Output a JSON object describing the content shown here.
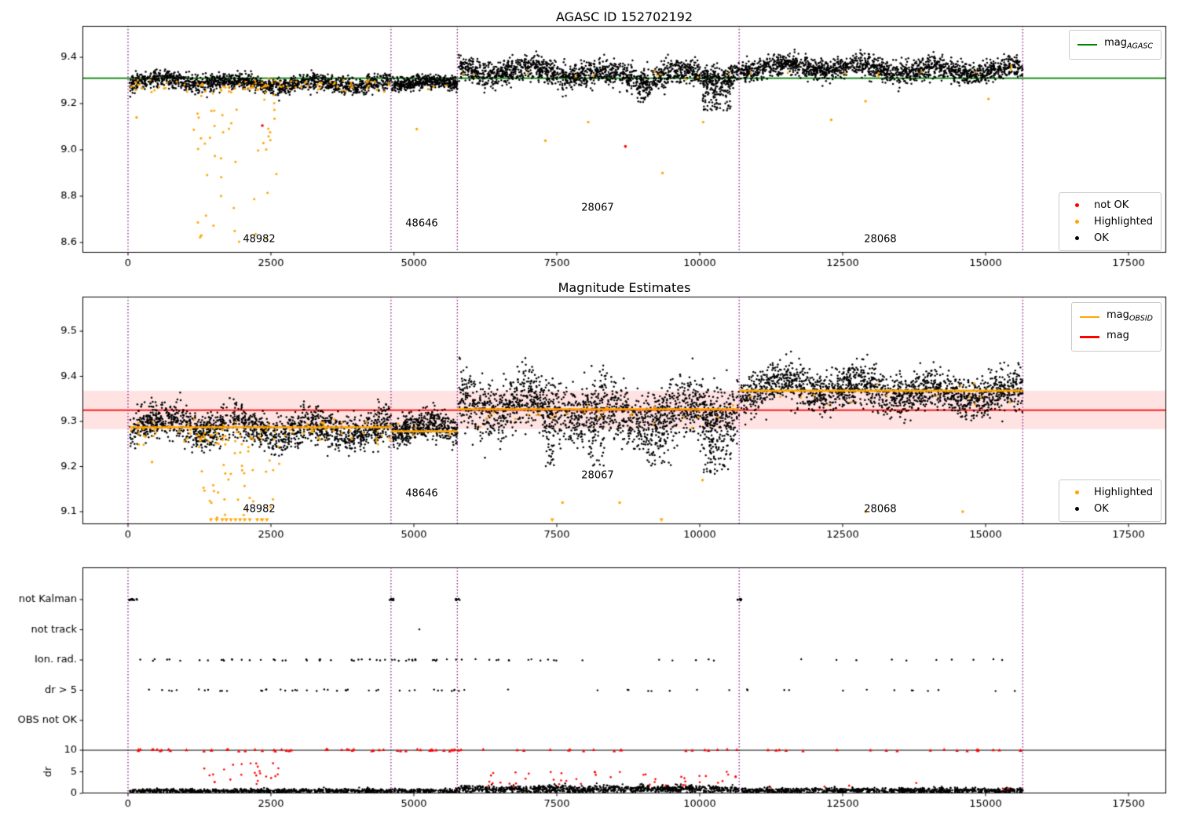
{
  "figure": {
    "background": "#ffffff"
  },
  "chart_data": [
    {
      "type": "scatter",
      "title": "AGASC ID 152702192",
      "xlim": [
        -800,
        18200
      ],
      "ylim": [
        8.55,
        9.54
      ],
      "xtick_values": [
        0,
        2500,
        5000,
        7500,
        10000,
        12500,
        15000,
        17500
      ],
      "xtick_labels": [
        "0",
        "2500",
        "5000",
        "7500",
        "10000",
        "12500",
        "15000",
        "17500"
      ],
      "yticks": [
        {
          "v": 8.6,
          "label": "8.6"
        },
        {
          "v": 8.8,
          "label": "8.8"
        },
        {
          "v": 9.0,
          "label": "9.0"
        },
        {
          "v": 9.2,
          "label": "9.2"
        },
        {
          "v": 9.4,
          "label": "9.4"
        }
      ],
      "vlines": {
        "color": "#800080",
        "x": [
          0,
          4600,
          5760,
          10690,
          15650
        ]
      },
      "ref_line": {
        "label_text": "mag",
        "label_sub": "AGASC",
        "value": 9.31,
        "color": "#008000"
      },
      "annotations": [
        {
          "text": "48982",
          "x": 2294,
          "y": 8.615
        },
        {
          "text": "48646",
          "x": 5137,
          "y": 8.68
        },
        {
          "text": "28067",
          "x": 8214,
          "y": 8.75
        },
        {
          "text": "28068",
          "x": 13159,
          "y": 8.615
        }
      ],
      "series": {
        "ok": {
          "color": "#000000",
          "segments": [
            {
              "x0": 30,
              "x1": 4600,
              "mean": 9.29,
              "sigma": 0.018,
              "wave": 0.013,
              "n": 1500
            },
            {
              "x0": 4620,
              "x1": 5760,
              "mean": 9.285,
              "sigma": 0.015,
              "wave": 0.01,
              "n": 450
            },
            {
              "x0": 5780,
              "x1": 10690,
              "mean": 9.33,
              "sigma": 0.027,
              "wave": 0.02,
              "n": 1700
            },
            {
              "x0": 10710,
              "x1": 15650,
              "mean": 9.35,
              "sigma": 0.023,
              "wave": 0.016,
              "n": 1700
            }
          ],
          "extra_clusters": [
            {
              "x0": 10050,
              "x1": 10550,
              "ymin": 9.17,
              "ymax": 9.3,
              "n": 100
            },
            {
              "x0": 8900,
              "x1": 9120,
              "ymin": 9.2,
              "ymax": 9.3,
              "n": 30
            }
          ]
        },
        "highlighted": {
          "color": "#FFA500",
          "sprinkle": {
            "n": 110,
            "seg1_bias": 0.6
          },
          "clusters": [
            {
              "x0": 1150,
              "x1": 2650,
              "ymin": 8.6,
              "ymax": 9.27,
              "n": 55
            }
          ],
          "points": [
            [
              150,
              9.14
            ],
            [
              1280,
              8.63
            ],
            [
              5050,
              9.09
            ],
            [
              7300,
              9.04
            ],
            [
              8050,
              9.12
            ],
            [
              9350,
              8.9
            ],
            [
              10060,
              9.12
            ],
            [
              12300,
              9.13
            ],
            [
              12900,
              9.21
            ],
            [
              15050,
              9.22
            ]
          ]
        },
        "not_ok": {
          "color": "#FF0000",
          "points": [
            [
              2350,
              9.105
            ],
            [
              8700,
              9.015
            ]
          ]
        }
      },
      "legend_points": [
        {
          "label": "not OK",
          "color": "#FF0000"
        },
        {
          "label": "Highlighted",
          "color": "#FFA500"
        },
        {
          "label": "OK",
          "color": "#000000"
        }
      ]
    },
    {
      "type": "scatter",
      "title": "Magnitude Estimates",
      "xlim": [
        -800,
        18200
      ],
      "ylim": [
        9.072,
        9.577
      ],
      "xtick_values": [
        0,
        2500,
        5000,
        7500,
        10000,
        12500,
        15000,
        17500
      ],
      "xtick_labels": [
        "0",
        "2500",
        "5000",
        "7500",
        "10000",
        "12500",
        "15000",
        "17500"
      ],
      "yticks": [
        {
          "v": 9.1,
          "label": "9.1"
        },
        {
          "v": 9.2,
          "label": "9.2"
        },
        {
          "v": 9.3,
          "label": "9.3"
        },
        {
          "v": 9.4,
          "label": "9.4"
        },
        {
          "v": 9.5,
          "label": "9.5"
        }
      ],
      "vlines": {
        "color": "#800080",
        "x": [
          0,
          4600,
          5760,
          10690,
          15650
        ]
      },
      "band": {
        "ymin": 9.283,
        "ymax": 9.368,
        "color": "rgba(255,40,40,0.13)"
      },
      "mag_line": {
        "label_text": "mag",
        "label_sub": "",
        "value": 9.325,
        "color": "#FF0000"
      },
      "step_line": {
        "label_text": "mag",
        "label_sub": "OBSID",
        "color": "#FFA500",
        "segments": [
          [
            30,
            4600,
            9.287
          ],
          [
            4600,
            5760,
            9.278
          ],
          [
            5760,
            10690,
            9.327
          ],
          [
            10690,
            15650,
            9.368
          ]
        ]
      },
      "annotations": [
        {
          "text": "48982",
          "x": 2294,
          "y": 9.105
        },
        {
          "text": "48646",
          "x": 5137,
          "y": 9.14
        },
        {
          "text": "28067",
          "x": 8214,
          "y": 9.18
        },
        {
          "text": "28068",
          "x": 13159,
          "y": 9.105
        }
      ],
      "series": {
        "ok": {
          "color": "#000000",
          "segments": [
            {
              "x0": 30,
              "x1": 4600,
              "mean": 9.287,
              "sigma": 0.02,
              "wave": 0.013,
              "n": 1500
            },
            {
              "x0": 4620,
              "x1": 5760,
              "mean": 9.28,
              "sigma": 0.016,
              "wave": 0.01,
              "n": 450
            },
            {
              "x0": 5780,
              "x1": 10690,
              "mean": 9.327,
              "sigma": 0.033,
              "wave": 0.02,
              "n": 1700
            },
            {
              "x0": 10710,
              "x1": 15650,
              "mean": 9.368,
              "sigma": 0.022,
              "wave": 0.014,
              "n": 1700
            }
          ],
          "extra_clusters": [
            {
              "x0": 7250,
              "x1": 7450,
              "ymin": 9.2,
              "ymax": 9.3,
              "n": 35
            },
            {
              "x0": 8050,
              "x1": 8350,
              "ymin": 9.2,
              "ymax": 9.3,
              "n": 45
            },
            {
              "x0": 9050,
              "x1": 9500,
              "ymin": 9.2,
              "ymax": 9.3,
              "n": 45
            },
            {
              "x0": 10050,
              "x1": 10550,
              "ymin": 9.18,
              "ymax": 9.3,
              "n": 90
            }
          ]
        },
        "highlighted": {
          "color": "#FFA500",
          "sprinkle": {
            "n": 130,
            "seg1_bias": 0.6
          },
          "clusters": [
            {
              "x0": 1150,
              "x1": 2650,
              "ymin": 9.082,
              "ymax": 9.27,
              "n": 60
            }
          ],
          "points": [
            [
              10050,
              9.17
            ],
            [
              12900,
              9.1
            ],
            [
              7600,
              9.12
            ],
            [
              8600,
              9.12
            ],
            [
              14600,
              9.1
            ],
            [
              420,
              9.21
            ]
          ],
          "triangles": {
            "y": 9.082,
            "xs": [
              1450,
              1550,
              1650,
              1720,
              1800,
              1880,
              1960,
              2040,
              2130,
              2260,
              2350,
              2430,
              7420,
              9330
            ]
          }
        }
      },
      "legend_points": [
        {
          "label": "Highlighted",
          "color": "#FFA500"
        },
        {
          "label": "OK",
          "color": "#000000"
        }
      ]
    },
    {
      "type": "scatter",
      "title": "",
      "ylabel": "dr",
      "xtick_values": [
        0,
        2500,
        5000,
        7500,
        10000,
        12500,
        15000,
        17500
      ],
      "xtick_labels": [
        "0",
        "2500",
        "5000",
        "7500",
        "10000",
        "12500",
        "15000",
        "17500"
      ],
      "flag_labels": [
        "not Kalman",
        "not track",
        "Ion. rad.",
        "dr > 5",
        "OBS not OK"
      ],
      "dr_ticks": [
        {
          "v": 10,
          "label": "10"
        },
        {
          "v": 5,
          "label": "5"
        },
        {
          "v": 0,
          "label": "0"
        }
      ],
      "vlines": {
        "color": "#800080",
        "x": [
          0,
          4600,
          5760,
          10690,
          15650
        ]
      },
      "hline": {
        "value": 10,
        "color": "#000000"
      },
      "flag_points": [
        {
          "row": 0,
          "clusters": [
            {
              "x0": 20,
              "x1": 160,
              "n": 18
            },
            {
              "x0": 4570,
              "x1": 4650,
              "n": 9
            },
            {
              "x0": 5730,
              "x1": 5810,
              "n": 9
            },
            {
              "x0": 10660,
              "x1": 10740,
              "n": 9
            }
          ]
        },
        {
          "row": 1,
          "clusters": [
            {
              "x0": 5090,
              "x1": 5110,
              "n": 1
            }
          ]
        },
        {
          "row": 2,
          "clusters": [
            {
              "x0": 60,
              "x1": 5900,
              "n": 52
            },
            {
              "x0": 5900,
              "x1": 15650,
              "n": 28
            }
          ]
        },
        {
          "row": 3,
          "clusters": [
            {
              "x0": 60,
              "x1": 5900,
              "n": 42
            },
            {
              "x0": 5900,
              "x1": 15650,
              "n": 22
            }
          ]
        },
        {
          "row": 4,
          "clusters": []
        }
      ],
      "dr_red_top": {
        "color": "#FF0000",
        "clusters": [
          {
            "x0": 60,
            "x1": 5900,
            "n": 55
          },
          {
            "x0": 5900,
            "x1": 15650,
            "n": 38
          }
        ]
      },
      "dr_black": {
        "color": "#000000",
        "segments": [
          {
            "x0": 30,
            "x1": 5760,
            "n": 900,
            "base": 0.7,
            "spread": 0.45
          },
          {
            "x0": 5780,
            "x1": 10690,
            "n": 950,
            "base": 1.4,
            "spread": 0.7
          },
          {
            "x0": 10710,
            "x1": 15650,
            "n": 820,
            "base": 0.9,
            "spread": 0.5
          }
        ]
      },
      "dr_red": {
        "color": "#FF0000",
        "clusters": [
          {
            "x0": 1300,
            "x1": 2700,
            "ymin": 2.0,
            "ymax": 7.0,
            "n": 25
          },
          {
            "x0": 6200,
            "x1": 10690,
            "ymin": 1.5,
            "ymax": 5.0,
            "n": 45
          },
          {
            "x0": 10710,
            "x1": 15400,
            "ymin": 1.0,
            "ymax": 2.5,
            "n": 6
          }
        ]
      }
    }
  ]
}
